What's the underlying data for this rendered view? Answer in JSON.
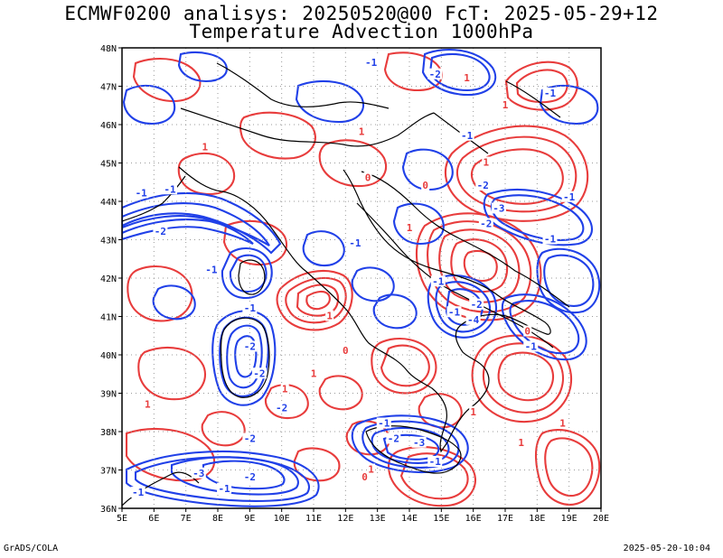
{
  "title": {
    "line1": "ECMWF0200 analisys: 20250520@00 FcT: 2025-05-29+12",
    "line2": "Temperature Advection 1000hPa"
  },
  "footer": {
    "left": "GrADS/COLA",
    "right": "2025-05-20-10:04"
  },
  "colors": {
    "positive_contour": "#e83c3c",
    "negative_contour": "#2040e8",
    "coastline": "#000000",
    "grid": "#9a9a9a",
    "frame": "#000000"
  },
  "map": {
    "lon_range": [
      5,
      20
    ],
    "lat_range": [
      36,
      48
    ],
    "x_ticks": [
      "5E",
      "6E",
      "7E",
      "8E",
      "9E",
      "10E",
      "11E",
      "12E",
      "13E",
      "14E",
      "15E",
      "16E",
      "17E",
      "18E",
      "19E",
      "20E"
    ],
    "y_ticks": [
      "36N",
      "37N",
      "38N",
      "39N",
      "40N",
      "41N",
      "42N",
      "43N",
      "44N",
      "45N",
      "46N",
      "47N",
      "48N"
    ],
    "grid": true,
    "contour_labels": [
      {
        "text": "-1",
        "lon": 5.6,
        "lat": 44.2,
        "sign": "neg"
      },
      {
        "text": "-1",
        "lon": 6.5,
        "lat": 44.3,
        "sign": "neg"
      },
      {
        "text": "-2",
        "lon": 6.2,
        "lat": 43.2,
        "sign": "neg"
      },
      {
        "text": "-1",
        "lon": 7.8,
        "lat": 42.2,
        "sign": "neg"
      },
      {
        "text": "-1",
        "lon": 9.0,
        "lat": 41.2,
        "sign": "neg"
      },
      {
        "text": "-2",
        "lon": 9.0,
        "lat": 40.2,
        "sign": "neg"
      },
      {
        "text": "-2",
        "lon": 9.3,
        "lat": 39.5,
        "sign": "neg"
      },
      {
        "text": "-2",
        "lon": 9.0,
        "lat": 37.8,
        "sign": "neg"
      },
      {
        "text": "-3",
        "lon": 7.4,
        "lat": 36.9,
        "sign": "neg"
      },
      {
        "text": "-2",
        "lon": 9.0,
        "lat": 36.8,
        "sign": "neg"
      },
      {
        "text": "-1",
        "lon": 8.2,
        "lat": 36.5,
        "sign": "neg"
      },
      {
        "text": "-1",
        "lon": 5.5,
        "lat": 36.4,
        "sign": "neg"
      },
      {
        "text": "-2",
        "lon": 13.5,
        "lat": 37.8,
        "sign": "neg"
      },
      {
        "text": "-3",
        "lon": 14.3,
        "lat": 37.7,
        "sign": "neg"
      },
      {
        "text": "-1",
        "lon": 14.8,
        "lat": 37.2,
        "sign": "neg"
      },
      {
        "text": "-1",
        "lon": 13.2,
        "lat": 38.2,
        "sign": "neg"
      },
      {
        "text": "-2",
        "lon": 16.1,
        "lat": 41.3,
        "sign": "neg"
      },
      {
        "text": "-1",
        "lon": 15.4,
        "lat": 41.1,
        "sign": "neg"
      },
      {
        "text": "-4",
        "lon": 16.0,
        "lat": 40.9,
        "sign": "neg"
      },
      {
        "text": "-1",
        "lon": 17.8,
        "lat": 40.2,
        "sign": "neg"
      },
      {
        "text": "-2",
        "lon": 16.4,
        "lat": 43.4,
        "sign": "neg"
      },
      {
        "text": "-3",
        "lon": 16.8,
        "lat": 43.8,
        "sign": "neg"
      },
      {
        "text": "-1",
        "lon": 18.4,
        "lat": 43.0,
        "sign": "neg"
      },
      {
        "text": "-1",
        "lon": 19.0,
        "lat": 44.1,
        "sign": "neg"
      },
      {
        "text": "-2",
        "lon": 16.3,
        "lat": 44.4,
        "sign": "neg"
      },
      {
        "text": "-1",
        "lon": 15.8,
        "lat": 45.7,
        "sign": "neg"
      },
      {
        "text": "-2",
        "lon": 14.8,
        "lat": 47.3,
        "sign": "neg"
      },
      {
        "text": "-1",
        "lon": 12.8,
        "lat": 47.6,
        "sign": "neg"
      },
      {
        "text": "-1",
        "lon": 18.4,
        "lat": 46.8,
        "sign": "neg"
      },
      {
        "text": "-1",
        "lon": 14.9,
        "lat": 41.9,
        "sign": "neg"
      },
      {
        "text": "-1",
        "lon": 12.3,
        "lat": 42.9,
        "sign": "neg"
      },
      {
        "text": "-2",
        "lon": 10.0,
        "lat": 38.6,
        "sign": "neg"
      },
      {
        "text": "1",
        "lon": 7.6,
        "lat": 45.4,
        "sign": "pos"
      },
      {
        "text": "1",
        "lon": 10.1,
        "lat": 39.1,
        "sign": "pos"
      },
      {
        "text": "1",
        "lon": 5.8,
        "lat": 38.7,
        "sign": "pos"
      },
      {
        "text": "1",
        "lon": 17.5,
        "lat": 37.7,
        "sign": "pos"
      },
      {
        "text": "1",
        "lon": 16.0,
        "lat": 38.5,
        "sign": "pos"
      },
      {
        "text": "1",
        "lon": 14.0,
        "lat": 43.3,
        "sign": "pos"
      },
      {
        "text": "1",
        "lon": 17.0,
        "lat": 46.5,
        "sign": "pos"
      },
      {
        "text": "1",
        "lon": 15.8,
        "lat": 47.2,
        "sign": "pos"
      },
      {
        "text": "1",
        "lon": 12.5,
        "lat": 45.8,
        "sign": "pos"
      },
      {
        "text": "1",
        "lon": 11.5,
        "lat": 41.0,
        "sign": "pos"
      },
      {
        "text": "1",
        "lon": 11.0,
        "lat": 39.5,
        "sign": "pos"
      },
      {
        "text": "1",
        "lon": 18.8,
        "lat": 38.2,
        "sign": "pos"
      },
      {
        "text": "1",
        "lon": 16.4,
        "lat": 45.0,
        "sign": "pos"
      },
      {
        "text": "1",
        "lon": 12.8,
        "lat": 37.0,
        "sign": "pos"
      },
      {
        "text": "0",
        "lon": 12.0,
        "lat": 40.1,
        "sign": "pos"
      },
      {
        "text": "0",
        "lon": 14.5,
        "lat": 44.4,
        "sign": "pos"
      },
      {
        "text": "0",
        "lon": 17.7,
        "lat": 40.6,
        "sign": "pos"
      },
      {
        "text": "0",
        "lon": 12.7,
        "lat": 44.6,
        "sign": "pos"
      },
      {
        "text": "0",
        "lon": 12.6,
        "lat": 36.8,
        "sign": "pos"
      }
    ]
  }
}
